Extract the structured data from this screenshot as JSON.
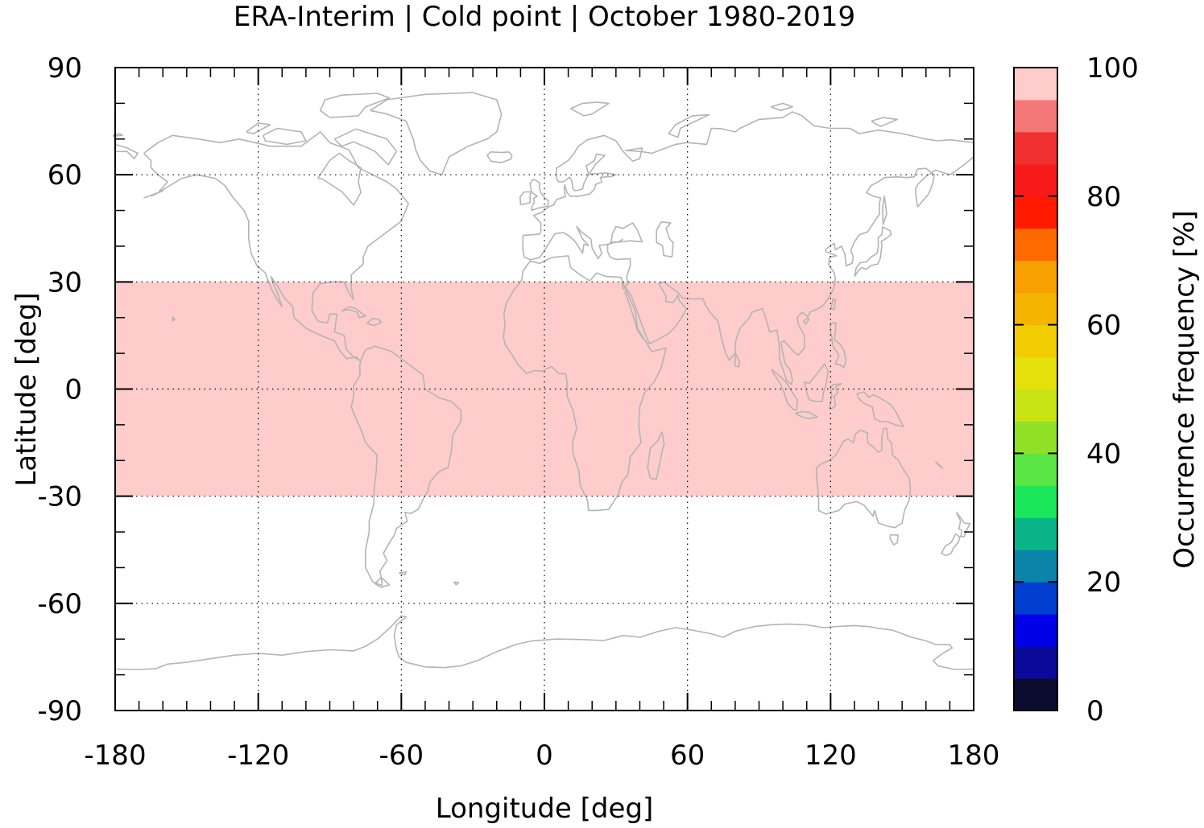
{
  "chart_data": {
    "type": "heatmap",
    "title": "ERA-Interim | Cold point | October 1980-2019",
    "xlabel": "Longitude [deg]",
    "ylabel": "Latitude [deg]",
    "xlim": [
      -180,
      180
    ],
    "ylim": [
      -90,
      90
    ],
    "x_ticks": [
      -180,
      -120,
      -60,
      0,
      60,
      120,
      180
    ],
    "x_tick_labels": [
      "-180",
      "-120",
      "-60",
      "0",
      "60",
      "120",
      "180"
    ],
    "y_ticks": [
      -90,
      -60,
      -30,
      0,
      30,
      60,
      90
    ],
    "y_tick_labels": [
      "-90",
      "-60",
      "-30",
      "0",
      "30",
      "60",
      "90"
    ],
    "grid": true,
    "cells": [
      {
        "lat_min": -30,
        "lat_max": 30,
        "lon_min": -180,
        "lon_max": 180,
        "value": 100
      }
    ],
    "background": "coastlines",
    "colorbar": {
      "label": "Occurrence frequency [%]",
      "range": [
        0,
        100
      ],
      "ticks": [
        0,
        20,
        40,
        60,
        80,
        100
      ],
      "tick_labels": [
        "0",
        "20",
        "40",
        "60",
        "80",
        "100"
      ],
      "levels": [
        0,
        5,
        10,
        15,
        20,
        25,
        30,
        35,
        40,
        45,
        50,
        55,
        60,
        65,
        70,
        75,
        80,
        85,
        90,
        95,
        100
      ],
      "colors": [
        "#0c0c2e",
        "#0a0a9a",
        "#0000e8",
        "#003ecf",
        "#0a84a8",
        "#08b488",
        "#1ae65c",
        "#5ae644",
        "#90e028",
        "#c8e414",
        "#e6e00a",
        "#f0cc00",
        "#f4b400",
        "#f8a000",
        "#ff6a00",
        "#ff1a00",
        "#f81a1a",
        "#f03030",
        "#f47878",
        "#ffcccc"
      ]
    },
    "colors": {
      "coastline": "#b4b4b4",
      "grid": "#000000",
      "band": "#ffcccc"
    }
  }
}
